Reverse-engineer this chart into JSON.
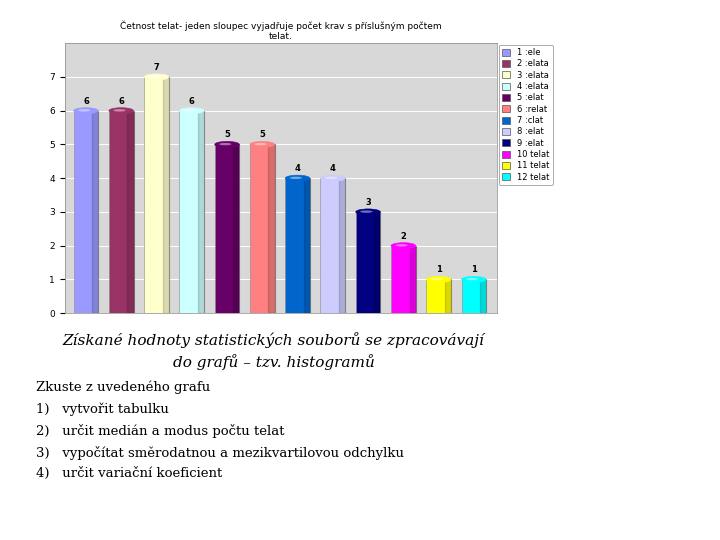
{
  "title": "Četnost telat- jeden sloupec vyjadřuje počet krav s příslušným počtem\ntelat.",
  "values": [
    6,
    6,
    7,
    6,
    5,
    5,
    4,
    4,
    3,
    2,
    1,
    1
  ],
  "bar_colors": [
    "#9999FF",
    "#993366",
    "#FFFFCC",
    "#CCFFFF",
    "#660066",
    "#FF8080",
    "#0066CC",
    "#CCCCFF",
    "#000080",
    "#FF00FF",
    "#FFFF00",
    "#00FFFF"
  ],
  "legend_labels": [
    "1 :ele",
    "2 :elata",
    "3 :elata",
    "4 :elata",
    "5 :elat",
    "6 :relat",
    "7 :clat",
    "8 :elat",
    "9 :elat",
    "10 telat",
    "11 telat",
    "12 telat"
  ],
  "ylim": [
    0,
    8
  ],
  "yticks": [
    0,
    1,
    2,
    3,
    4,
    5,
    6,
    7
  ],
  "background_color": "#FFFFFF",
  "chart_bg": "#D8D8D8",
  "text_body_line1": "Získané hodnoty statistických souborů se zpracovávají",
  "text_body_line2": "do grafů – tzv. histogramů",
  "text_list": [
    "Zkuste z uvedeného grafu",
    "1)   vytvořit tabulku",
    "2)   určit medián a modus počtu telat",
    "3)   vypočítat směrodatnou a mezikvartilovou odchylku",
    "4)   určit variační koeficient"
  ],
  "title_fontsize": 6.5,
  "bar_label_fontsize": 6,
  "legend_fontsize": 6,
  "body_fontsize": 11,
  "list_fontsize": 9.5
}
